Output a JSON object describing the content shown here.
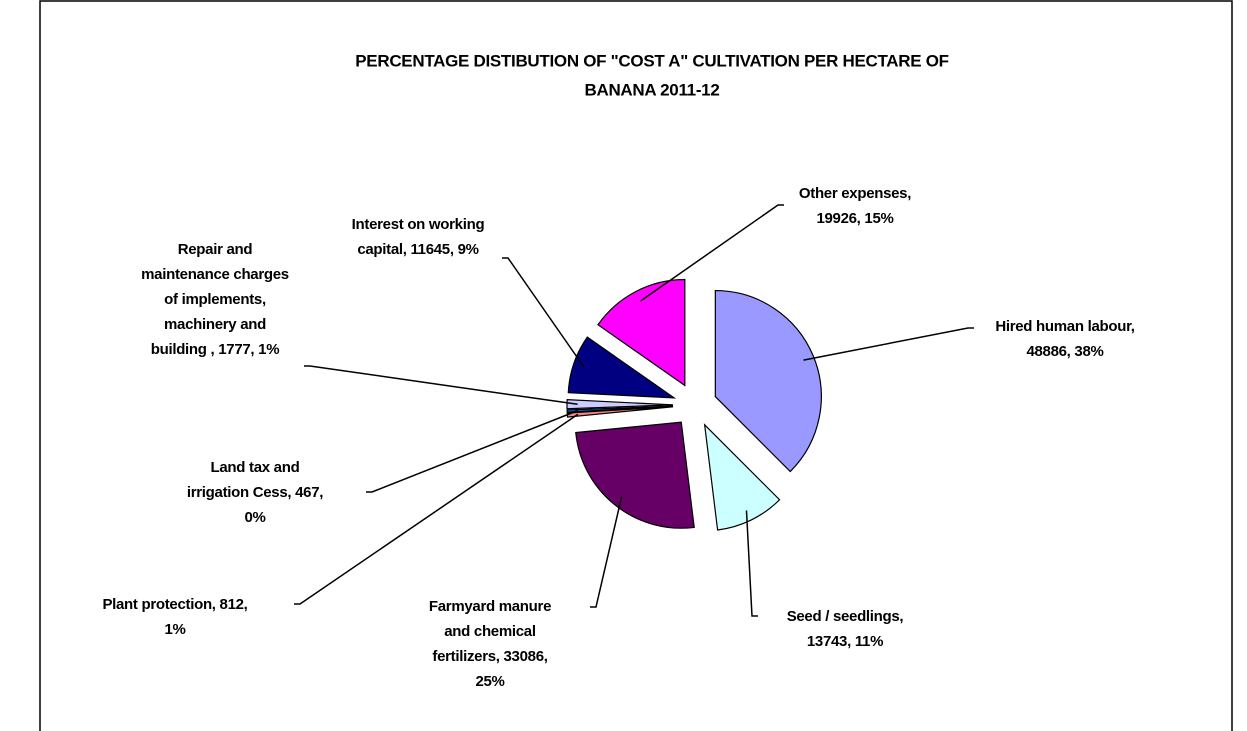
{
  "chart_data": {
    "type": "pie",
    "title": [
      "PERCENTAGE DISTIBUTION OF \"COST A\" CULTIVATION PER HECTARE OF",
      "BANANA 2011-12"
    ],
    "categories": [
      "Hired human labour",
      "Seed / seedlings",
      "Farmyard manure and chemical fertilizers",
      "Plant protection",
      "Land tax and irrigation Cess",
      "Repair and maintenance charges of implements, machinery and building",
      "Interest on working capital",
      "Other expenses"
    ],
    "values": [
      48886,
      13743,
      33086,
      812,
      467,
      1777,
      11645,
      19926
    ],
    "labels": [
      [
        "Hired human labour,",
        "48886, 38%"
      ],
      [
        "Seed / seedlings,",
        "13743, 11%"
      ],
      [
        "Farmyard manure",
        "and chemical",
        "fertilizers, 33086,",
        "25%"
      ],
      [
        "Plant protection, 812,",
        "1%"
      ],
      [
        "Land tax and",
        "irrigation Cess, 467,",
        "0%"
      ],
      [
        "Repair and",
        "maintenance charges",
        "of implements,",
        "machinery and",
        "building , 1777, 1%"
      ],
      [
        "Interest on working",
        "capital, 11645, 9%"
      ],
      [
        "Other expenses,",
        "19926, 15%"
      ]
    ],
    "colors": [
      "#9999ff",
      "#ccffff",
      "#660066",
      "#ff8080",
      "#0066cc",
      "#ccccff",
      "#000080",
      "#ff00ff"
    ]
  }
}
